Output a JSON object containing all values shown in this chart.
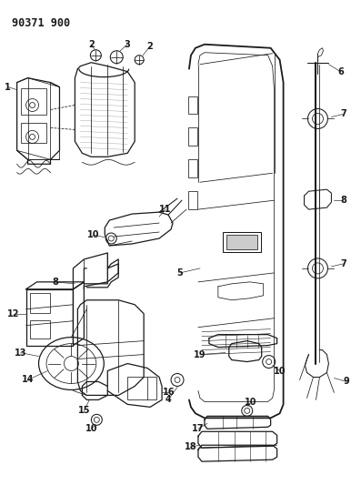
{
  "title": "90371 900",
  "bg_color": "#ffffff",
  "line_color": "#1a1a1a",
  "title_fontsize": 8.5,
  "label_fontsize": 6.5,
  "figsize": [
    3.97,
    5.33
  ],
  "dpi": 100
}
